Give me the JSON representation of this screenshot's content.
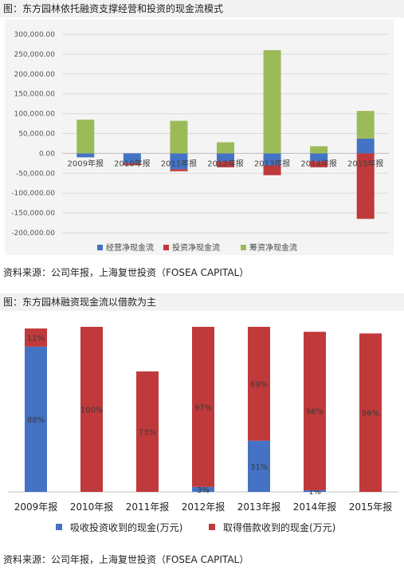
{
  "chart1": {
    "title": "图：东方园林依托融资支撑经营和投资的现金流模式",
    "source": "资料来源：公司年报，上海复世投资（FOSEA CAPITAL）",
    "colors": {
      "operating": "#4472c4",
      "investing": "#c0393b",
      "financing": "#9bbb59"
    }
  },
  "chart2": {
    "title": "图：东方园林融资现金流以借款为主",
    "source": "资料来源：公司年报，上海复世投资（FOSEA CAPITAL）",
    "colors": {
      "absorb": "#4472c4",
      "borrow": "#c0393b"
    }
  },
  "chart_data": [
    {
      "type": "bar",
      "stacked": true,
      "title": "图：东方园林依托融资支撑经营和投资的现金流模式",
      "categories": [
        "2009年报",
        "2010年报",
        "2011年报",
        "2012年报",
        "2013年报",
        "2014年报",
        "2015年报"
      ],
      "series": [
        {
          "name": "经营净现金流",
          "values": [
            -10000,
            -25000,
            -40000,
            -20000,
            -30000,
            -20000,
            37000
          ]
        },
        {
          "name": "投资净现金流",
          "values": [
            0,
            -5000,
            -5000,
            -15000,
            -25000,
            -15000,
            -165000
          ]
        },
        {
          "name": "筹资净现金流",
          "values": [
            85000,
            0,
            82000,
            28000,
            260000,
            18000,
            70000
          ]
        }
      ],
      "yticks": [
        "300,000.00",
        "250,000.00",
        "200,000.00",
        "150,000.00",
        "100,000.00",
        "50,000.00",
        "0.00",
        "-50,000.00",
        "-100,000.00",
        "-150,000.00",
        "-200,000.00"
      ],
      "ylim": [
        -200000,
        300000
      ],
      "grid": true,
      "legend": "bottom"
    },
    {
      "type": "bar",
      "stacked": true,
      "title": "图：东方园林融资现金流以借款为主",
      "categories": [
        "2009年报",
        "2010年报",
        "2011年报",
        "2012年报",
        "2013年报",
        "2014年报",
        "2015年报"
      ],
      "series": [
        {
          "name": "吸收投资收到的现金(万元)",
          "values": [
            88,
            0,
            0,
            3,
            31,
            1,
            0
          ],
          "labels": [
            "88%",
            "",
            "0%",
            "3%",
            "31%",
            "1%",
            "0%"
          ]
        },
        {
          "name": "取得借款收到的现金(万元)",
          "values": [
            11,
            100,
            73,
            97,
            69,
            96,
            96
          ],
          "labels": [
            "11%",
            "100%",
            "73%",
            "97%",
            "69%",
            "96%",
            "96%"
          ]
        }
      ],
      "ylim": [
        0,
        100
      ],
      "grid": false,
      "legend": "bottom"
    }
  ]
}
